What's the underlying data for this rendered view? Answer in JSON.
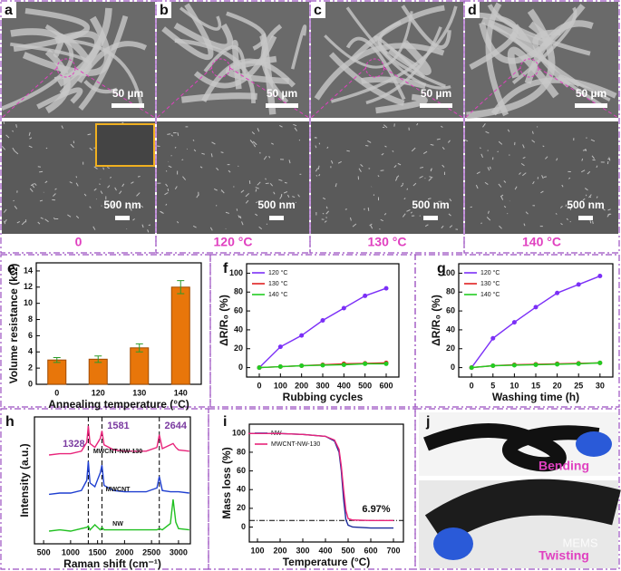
{
  "sem_panels": [
    {
      "label": "a",
      "scale_top": "50 µm",
      "scale_bottom": "500 nm",
      "caption": "0"
    },
    {
      "label": "b",
      "scale_top": "50 µm",
      "scale_bottom": "500 nm",
      "caption": "120 °C"
    },
    {
      "label": "c",
      "scale_top": "50 µm",
      "scale_bottom": "500 nm",
      "caption": "130 °C"
    },
    {
      "label": "d",
      "scale_top": "50 µm",
      "scale_bottom": "500 nm",
      "caption": "140 °C"
    }
  ],
  "chart_data": [
    {
      "type": "bar",
      "label": "e",
      "categories": [
        "0",
        "120",
        "130",
        "140"
      ],
      "values": [
        3.0,
        3.1,
        4.5,
        12.0
      ],
      "errors": [
        0.3,
        0.4,
        0.5,
        0.8
      ],
      "color": "#e8760a",
      "ylim": [
        0,
        15
      ],
      "yticks": [
        0,
        2,
        4,
        6,
        8,
        10,
        12,
        14
      ],
      "ylabel": "Volume resistance (kΩ)",
      "xlabel": "Annealing temperature (°C)"
    },
    {
      "type": "line",
      "label": "f",
      "x": [
        0,
        100,
        200,
        300,
        400,
        500,
        600
      ],
      "xlim": [
        -60,
        660
      ],
      "xticks": [
        0,
        100,
        200,
        300,
        400,
        500,
        600
      ],
      "ylim": [
        -10,
        110
      ],
      "yticks": [
        0,
        20,
        40,
        60,
        80,
        100
      ],
      "ylabel": "ΔR/R₀ (%)",
      "xlabel": "Rubbing cycles",
      "legend": "upper left",
      "series": [
        {
          "name": "120 °C",
          "color": "#7b2ff7",
          "values": [
            0,
            22,
            34,
            50,
            63,
            76,
            84
          ]
        },
        {
          "name": "130 °C",
          "color": "#e02020",
          "values": [
            0,
            1,
            2,
            3,
            4,
            4.5,
            5
          ]
        },
        {
          "name": "140 °C",
          "color": "#22cc22",
          "values": [
            0,
            1,
            2,
            2.5,
            3,
            4,
            4
          ]
        }
      ]
    },
    {
      "type": "line",
      "label": "g",
      "x": [
        0,
        5,
        10,
        15,
        20,
        25,
        30
      ],
      "xlim": [
        -3,
        33
      ],
      "xticks": [
        0,
        5,
        10,
        15,
        20,
        25,
        30
      ],
      "ylim": [
        -10,
        110
      ],
      "yticks": [
        0,
        20,
        40,
        60,
        80,
        100
      ],
      "ylabel": "ΔR/R₀ (%)",
      "xlabel": "Washing time (h)",
      "legend": "upper left",
      "series": [
        {
          "name": "120 °C",
          "color": "#7b2ff7",
          "values": [
            0,
            31,
            48,
            64,
            79,
            88,
            97
          ]
        },
        {
          "name": "130 °C",
          "color": "#e02020",
          "values": [
            0,
            2,
            3,
            3.5,
            4,
            4.5,
            5
          ]
        },
        {
          "name": "140 °C",
          "color": "#22cc22",
          "values": [
            0,
            2,
            2.5,
            3,
            3.5,
            4,
            5
          ]
        }
      ]
    },
    {
      "type": "spectrum",
      "label": "h",
      "x": [
        600,
        800,
        1000,
        1200,
        1300,
        1328,
        1360,
        1450,
        1550,
        1581,
        1620,
        1800,
        2000,
        2200,
        2400,
        2600,
        2644,
        2700,
        2850,
        2900,
        2950,
        3000,
        3200
      ],
      "xlim": [
        330,
        3220
      ],
      "xticks": [
        500,
        1000,
        1500,
        2000,
        2500,
        3000
      ],
      "ylim": [
        0,
        10
      ],
      "ylabel": "Intensity (a.u.)",
      "xlabel": "Raman shift (cm⁻¹)",
      "peaks": [
        1328,
        1581,
        2644
      ],
      "series": [
        {
          "name": "MWCNT-NW-130",
          "color": "#e8247a",
          "values": [
            7,
            7.1,
            7.1,
            7.3,
            8,
            9.3,
            7.9,
            7.6,
            8.3,
            8.9,
            7.8,
            7.4,
            7.3,
            7.3,
            7.3,
            7.6,
            8.6,
            7.5,
            7.8,
            7.9,
            7.6,
            7.4,
            7.3
          ]
        },
        {
          "name": "MWCNT",
          "color": "#1f3fd0",
          "values": [
            3.9,
            4,
            4,
            4.2,
            5,
            6.5,
            4.8,
            4.5,
            5.6,
            6.2,
            4.6,
            4.2,
            4.1,
            4.1,
            4.1,
            4.4,
            5.3,
            4.2,
            4.1,
            4.1,
            4.1,
            4.1,
            4
          ]
        },
        {
          "name": "NW",
          "color": "#20c020",
          "values": [
            1,
            1.1,
            1,
            1.2,
            1.3,
            1.4,
            1.1,
            1.5,
            1.1,
            1.3,
            1.1,
            1.1,
            1.1,
            1.1,
            1.1,
            1.1,
            1.2,
            1.1,
            1.6,
            3.5,
            1.7,
            1.2,
            1.1
          ]
        }
      ]
    },
    {
      "type": "line",
      "label": "i",
      "x": [
        60,
        100,
        200,
        300,
        400,
        440,
        460,
        470,
        480,
        490,
        500,
        520,
        600,
        700
      ],
      "xlim": [
        64,
        744
      ],
      "xticks": [
        100,
        200,
        300,
        400,
        500,
        600,
        700
      ],
      "ylim": [
        -16,
        110
      ],
      "yticks": [
        0,
        20,
        40,
        60,
        80,
        100
      ],
      "ylabel": "Mass loss (%)",
      "xlabel": "Temperature (°C)",
      "legend": "upper left",
      "residue": {
        "value": 6.97,
        "label": "6.97%"
      },
      "series": [
        {
          "name": "NW",
          "color": "#1a2a9a",
          "values": [
            100,
            100,
            100,
            99,
            97,
            92,
            80,
            60,
            30,
            8,
            2,
            0,
            -1,
            -1
          ]
        },
        {
          "name": "MWCNT-NW-130",
          "color": "#e8247a",
          "values": [
            100,
            100,
            100,
            99,
            97,
            93,
            83,
            65,
            40,
            18,
            9,
            7.5,
            7,
            7
          ]
        }
      ]
    }
  ],
  "photo_panel": {
    "label": "j",
    "captions": [
      "Bending",
      "Twisting"
    ],
    "watermark": "MEMS"
  }
}
